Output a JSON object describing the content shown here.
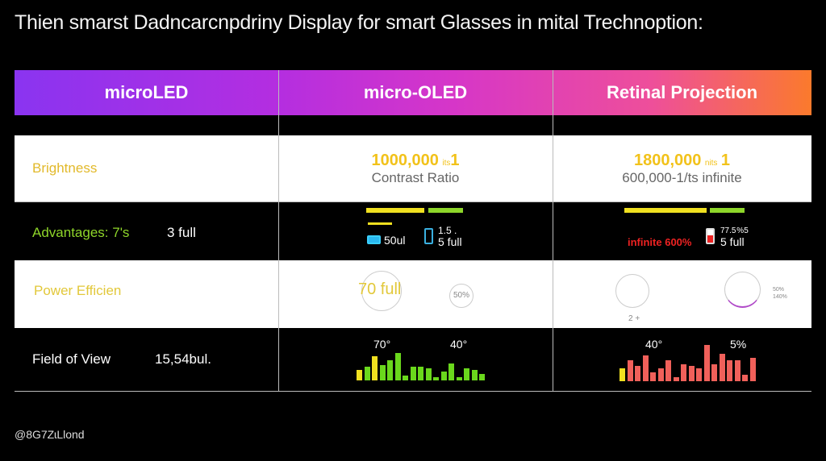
{
  "title": "Thien smarst Dadncarcnpdriny Display for smart Glasses in mital Trechnoption:",
  "header": {
    "columns": [
      "microLED",
      "micro-OLED",
      "Retinal Projection"
    ],
    "gradient": [
      "#8a34f0",
      "#d636c8",
      "#fb7a2c"
    ]
  },
  "rows": {
    "brightness": {
      "label": "Brightness",
      "oled": {
        "value": "1000,000",
        "unit": "its",
        "suffix": "1",
        "sub": "Contrast  Ratio"
      },
      "retinal": {
        "value": "1800,000",
        "unit": "nits",
        "suffix": "1",
        "sub": "600,000-1/ts infinite"
      }
    },
    "advantages": {
      "label": "Advantages:  7's",
      "value": "3 full",
      "oled": {
        "a": "50ul",
        "b": "1.5 .",
        "c": "5 full"
      },
      "retinal": {
        "a": "infinite 600%",
        "b": "77.5 %5",
        "c": "5 full"
      }
    },
    "power": {
      "label": "Power Efficien",
      "oled": {
        "a": "70 full",
        "b": "50%"
      },
      "retinal": {
        "a": "2 +",
        "b": "50%",
        "c": "140%"
      }
    },
    "fov": {
      "label": "Field of View",
      "value": "15,54bul.",
      "oled": {
        "l1": "70°",
        "l2": "40°",
        "bars": [
          3,
          4,
          7,
          4.5,
          6,
          8,
          1.5,
          4,
          4,
          3.5,
          1,
          2.5,
          5,
          1,
          3.5,
          3,
          2
        ]
      },
      "retinal": {
        "l1": "40°",
        "l2": "5%",
        "bars": [
          3,
          5,
          3.5,
          6,
          2,
          3,
          5,
          1,
          4,
          3.5,
          3,
          8.5,
          4,
          6.5,
          5,
          5,
          1.5,
          5.5
        ]
      }
    }
  },
  "footer": "@8G7ZɩLlond"
}
